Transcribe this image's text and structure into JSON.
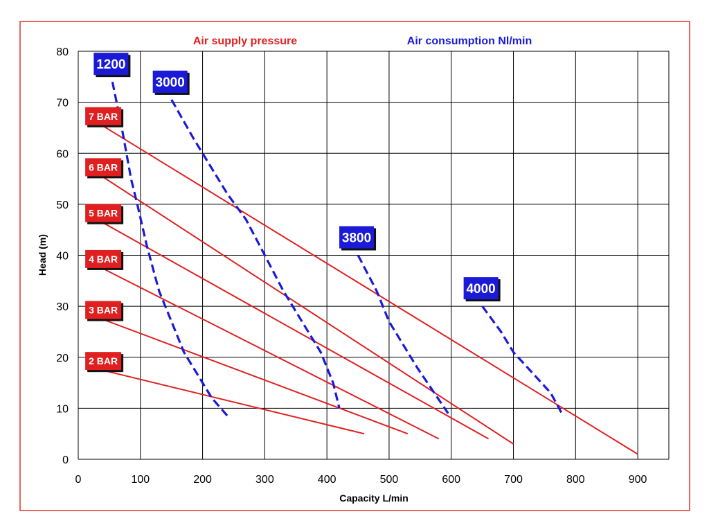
{
  "chart_data": {
    "type": "line",
    "xlabel": "Capacity L/min",
    "ylabel": "Head (m)",
    "xlim": [
      0,
      950
    ],
    "ylim": [
      0,
      80
    ],
    "x_ticks": [
      0,
      100,
      200,
      300,
      400,
      500,
      600,
      700,
      800,
      900
    ],
    "y_ticks": [
      0,
      10,
      20,
      30,
      40,
      50,
      60,
      70,
      80
    ],
    "grid": true,
    "legend": [
      {
        "text": "Air supply pressure",
        "color": "#e02020"
      },
      {
        "text": "Air consumption Nl/min",
        "color": "#1a1ad8"
      }
    ],
    "pressure_series": [
      {
        "name": "2 BAR",
        "points": [
          [
            38,
            17.5
          ],
          [
            460,
            5
          ]
        ]
      },
      {
        "name": "3 BAR",
        "points": [
          [
            38,
            27.5
          ],
          [
            530,
            5
          ]
        ]
      },
      {
        "name": "4 BAR",
        "points": [
          [
            38,
            37.5
          ],
          [
            580,
            4
          ]
        ]
      },
      {
        "name": "5 BAR",
        "points": [
          [
            38,
            46.5
          ],
          [
            660,
            4
          ]
        ]
      },
      {
        "name": "6 BAR",
        "points": [
          [
            38,
            55.5
          ],
          [
            700,
            3
          ]
        ]
      },
      {
        "name": "7 BAR",
        "points": [
          [
            38,
            65.5
          ],
          [
            900,
            1
          ]
        ]
      }
    ],
    "consumption_series": [
      {
        "name": "1200",
        "points": [
          [
            55,
            74
          ],
          [
            70,
            65
          ],
          [
            85,
            55
          ],
          [
            95,
            50
          ],
          [
            110,
            42
          ],
          [
            130,
            33
          ],
          [
            150,
            27
          ],
          [
            170,
            21
          ],
          [
            195,
            16
          ],
          [
            215,
            12
          ],
          [
            240,
            8.5
          ]
        ]
      },
      {
        "name": "3000",
        "points": [
          [
            150,
            70.5
          ],
          [
            185,
            63
          ],
          [
            215,
            57
          ],
          [
            240,
            52
          ],
          [
            270,
            47
          ],
          [
            300,
            40
          ],
          [
            330,
            33
          ],
          [
            360,
            27
          ],
          [
            390,
            21
          ],
          [
            410,
            15
          ],
          [
            420,
            10
          ]
        ]
      },
      {
        "name": "3800",
        "points": [
          [
            450,
            40
          ],
          [
            480,
            33
          ],
          [
            500,
            27
          ],
          [
            525,
            22
          ],
          [
            545,
            18
          ],
          [
            570,
            13.5
          ],
          [
            595,
            9
          ]
        ]
      },
      {
        "name": "4000",
        "points": [
          [
            650,
            30
          ],
          [
            680,
            25
          ],
          [
            700,
            21
          ],
          [
            730,
            17
          ],
          [
            760,
            13
          ],
          [
            780,
            8.5
          ]
        ]
      }
    ]
  }
}
